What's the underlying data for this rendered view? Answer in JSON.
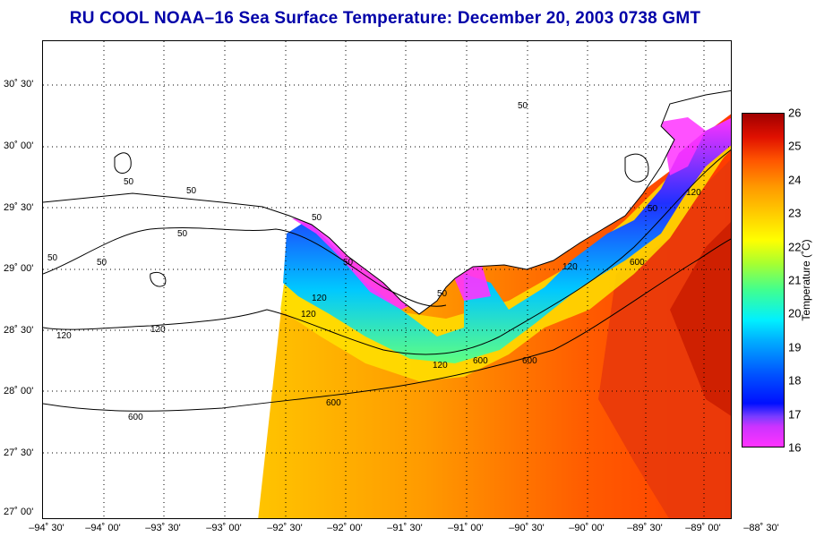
{
  "title": "RU COOL  NOAA–16  Sea Surface Temperature:  December 20, 2003 0738 GMT",
  "latitude_labels": [
    "30˚ 30'",
    "30˚ 00'",
    "29˚ 30'",
    "29˚ 00'",
    "28˚ 30'",
    "28˚ 00'",
    "27˚ 30'",
    "27˚ 00'"
  ],
  "longitude_labels": [
    "–94˚ 30'",
    "–94˚ 00'",
    "–93˚ 30'",
    "–93˚ 00'",
    "–92˚ 30'",
    "–92˚ 00'",
    "–91˚ 30'",
    "–91˚ 00'",
    "–90˚ 30'",
    "–90˚ 00'",
    "–89˚ 30'",
    "–89˚ 00'",
    "–88˚ 30'"
  ],
  "contour_labels": [
    {
      "text": "50"
    },
    {
      "text": "50"
    },
    {
      "text": "50"
    },
    {
      "text": "50"
    },
    {
      "text": "50"
    },
    {
      "text": "50"
    },
    {
      "text": "50"
    },
    {
      "text": "50"
    },
    {
      "text": "50"
    },
    {
      "text": "50"
    },
    {
      "text": "120"
    },
    {
      "text": "120"
    },
    {
      "text": "120"
    },
    {
      "text": "120"
    },
    {
      "text": "120"
    },
    {
      "text": "120"
    },
    {
      "text": "120"
    },
    {
      "text": "600"
    },
    {
      "text": "600"
    },
    {
      "text": "600"
    },
    {
      "text": "600"
    },
    {
      "text": "600"
    }
  ],
  "colorbar": {
    "label": "Temperature (˚C)",
    "ticks": [
      "26",
      "25",
      "24",
      "23",
      "22",
      "21",
      "20",
      "19",
      "18",
      "17",
      "16"
    ],
    "min": 16,
    "max": 26
  },
  "colors": {
    "title": "#0000a8",
    "cold": "#ff33ff",
    "cool": "#0010ff",
    "mid": "#ffff00",
    "warm": "#ff5500",
    "hot": "#a00000",
    "land": "#ffffff",
    "grid": "#000000"
  }
}
